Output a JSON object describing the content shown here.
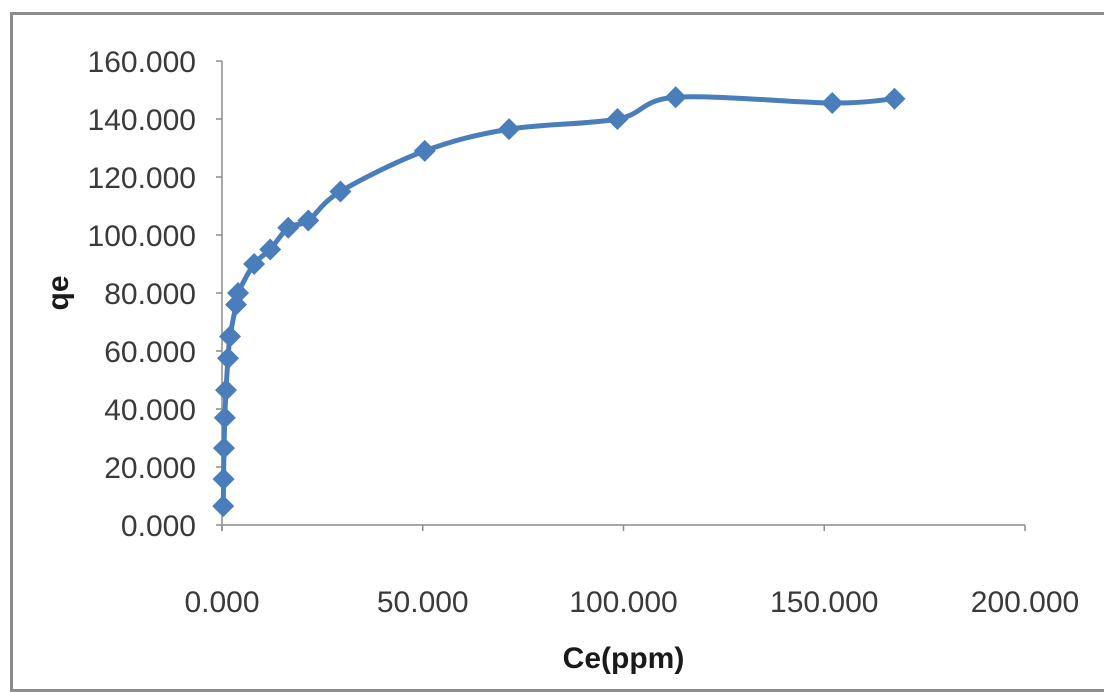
{
  "chart_data": {
    "type": "line",
    "title": "",
    "xlabel": "Ce(ppm)",
    "ylabel": "qe",
    "xlim": [
      0,
      200
    ],
    "ylim": [
      0,
      160
    ],
    "x_ticks": [
      "0.000",
      "50.000",
      "100.000",
      "150.000",
      "200.000"
    ],
    "y_ticks": [
      "0.000",
      "20.000",
      "40.000",
      "60.000",
      "80.000",
      "100.000",
      "120.000",
      "140.000",
      "160.000"
    ],
    "grid": false,
    "legend": "none",
    "marker": "diamond",
    "smooth": true,
    "series": [
      {
        "color": "#4a7ebb",
        "x": [
          0.3,
          0.4,
          0.5,
          0.7,
          1.0,
          1.5,
          2.0,
          3.5,
          4.0,
          8.0,
          12.0,
          16.5,
          21.5,
          29.5,
          50.5,
          71.5,
          98.5,
          113.0,
          152.0,
          167.5
        ],
        "y": [
          6.5,
          15.8,
          26.5,
          37.0,
          46.5,
          57.5,
          65.0,
          76.0,
          80.0,
          90.0,
          95.0,
          102.5,
          105.0,
          115.0,
          129.0,
          136.5,
          140.0,
          147.5,
          145.5,
          147.0
        ]
      }
    ]
  }
}
